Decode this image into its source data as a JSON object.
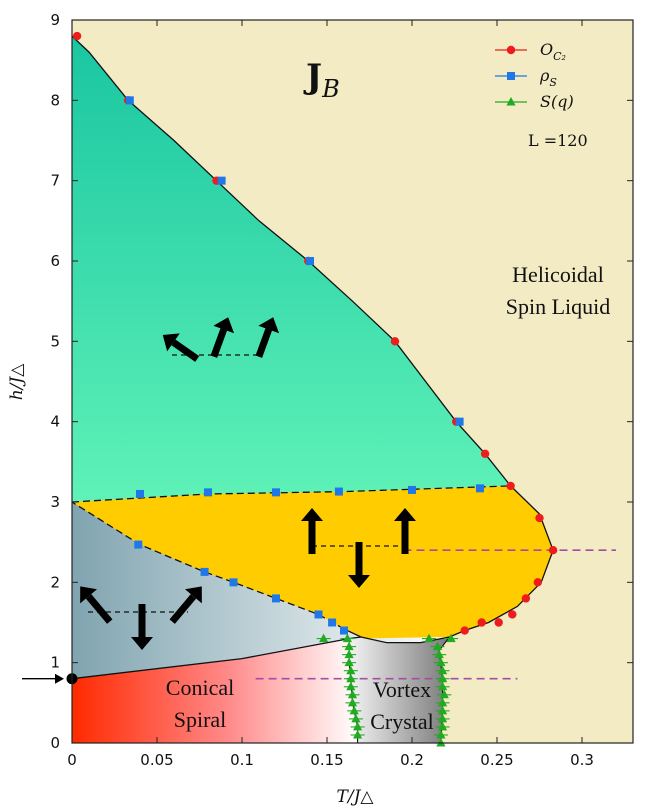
{
  "chart_data": {
    "type": "scatter",
    "title": "J_B",
    "xlabel": "T/J△",
    "ylabel": "h/J△",
    "xlim": [
      0,
      0.33
    ],
    "ylim": [
      0,
      9
    ],
    "x_ticks": [
      "0",
      "0.05",
      "0.1",
      "0.15",
      "0.2",
      "0.25",
      "0.3"
    ],
    "x_tick_values": [
      0,
      0.05,
      0.1,
      0.15,
      0.2,
      0.25,
      0.3
    ],
    "y_ticks": [
      "0",
      "1",
      "2",
      "3",
      "4",
      "5",
      "6",
      "7",
      "8",
      "9"
    ],
    "y_tick_values": [
      0,
      1,
      2,
      3,
      4,
      5,
      6,
      7,
      8,
      9
    ],
    "legend_position": "top-right",
    "legend_note": "L =120",
    "series": [
      {
        "name": "O_C2",
        "label_main": "O",
        "label_sub": "C₂",
        "color": "#ee1c1c",
        "marker": "circle",
        "points": [
          [
            0.003,
            8.8
          ],
          [
            0.033,
            8.0
          ],
          [
            0.085,
            7.0
          ],
          [
            0.139,
            6.0
          ],
          [
            0.19,
            5.0
          ],
          [
            0.226,
            4.0
          ],
          [
            0.243,
            3.6
          ],
          [
            0.258,
            3.2
          ],
          [
            0.275,
            2.8
          ],
          [
            0.283,
            2.4
          ],
          [
            0.274,
            2.0
          ],
          [
            0.267,
            1.8
          ],
          [
            0.259,
            1.6
          ],
          [
            0.251,
            1.5
          ],
          [
            0.241,
            1.5
          ],
          [
            0.231,
            1.4
          ]
        ]
      },
      {
        "name": "ρ_S",
        "label_main": "ρ",
        "label_sub": "S",
        "color": "#1f77e8",
        "marker": "square",
        "points": [
          [
            0.034,
            8.0
          ],
          [
            0.088,
            7.0
          ],
          [
            0.14,
            6.0
          ],
          [
            0.228,
            4.0
          ],
          [
            0.04,
            3.1
          ],
          [
            0.08,
            3.12
          ],
          [
            0.12,
            3.12
          ],
          [
            0.157,
            3.13
          ],
          [
            0.2,
            3.15
          ],
          [
            0.24,
            3.17
          ],
          [
            0.039,
            2.47
          ],
          [
            0.078,
            2.13
          ],
          [
            0.095,
            2.0
          ],
          [
            0.12,
            1.8
          ],
          [
            0.145,
            1.6
          ],
          [
            0.153,
            1.5
          ],
          [
            0.16,
            1.4
          ]
        ]
      },
      {
        "name": "S(q)",
        "label_main": "S(q)",
        "label_sub": "",
        "color": "#22aa22",
        "marker": "triangle",
        "points": [
          [
            0.148,
            1.3
          ],
          [
            0.162,
            1.3
          ],
          [
            0.163,
            1.2
          ],
          [
            0.163,
            1.1
          ],
          [
            0.163,
            1.0
          ],
          [
            0.164,
            0.9
          ],
          [
            0.164,
            0.8
          ],
          [
            0.164,
            0.7
          ],
          [
            0.165,
            0.6
          ],
          [
            0.165,
            0.5
          ],
          [
            0.166,
            0.4
          ],
          [
            0.167,
            0.3
          ],
          [
            0.168,
            0.2
          ],
          [
            0.168,
            0.1
          ],
          [
            0.21,
            1.3
          ],
          [
            0.223,
            1.3
          ],
          [
            0.215,
            1.2
          ],
          [
            0.216,
            1.1
          ],
          [
            0.217,
            1.0
          ],
          [
            0.218,
            0.9
          ],
          [
            0.218,
            0.8
          ],
          [
            0.218,
            0.7
          ],
          [
            0.219,
            0.6
          ],
          [
            0.218,
            0.5
          ],
          [
            0.218,
            0.4
          ],
          [
            0.218,
            0.3
          ],
          [
            0.218,
            0.2
          ],
          [
            0.217,
            0.1
          ],
          [
            0.217,
            0.0
          ]
        ]
      }
    ],
    "region_labels": {
      "helicoidal": [
        "Helicoidal",
        "Spin Liquid"
      ],
      "conical": [
        "Conical",
        "Spiral"
      ],
      "vortex": [
        "Vortex",
        "Crystal"
      ]
    },
    "marked_point": [
      0,
      0.8
    ],
    "dashed_reference_lines": [
      {
        "x": [
          0.195,
          0.32
        ],
        "y": 2.4
      },
      {
        "x": [
          0.108,
          0.262
        ],
        "y": 0.8
      }
    ],
    "region_colors": {
      "background": "#f2ebc4",
      "upper_phase_top": "#17c4a0",
      "upper_phase_bottom": "#5ff2b8",
      "middle_phase": "#ffcc00",
      "left_phase_dark": "#80a4b0",
      "left_phase_light": "#ffffff",
      "conical": "#ff2a00",
      "vortex_dark": "#7a7a7a",
      "vortex_light": "#f4f4f4",
      "dashed_magenta": "#a64ca6"
    }
  }
}
